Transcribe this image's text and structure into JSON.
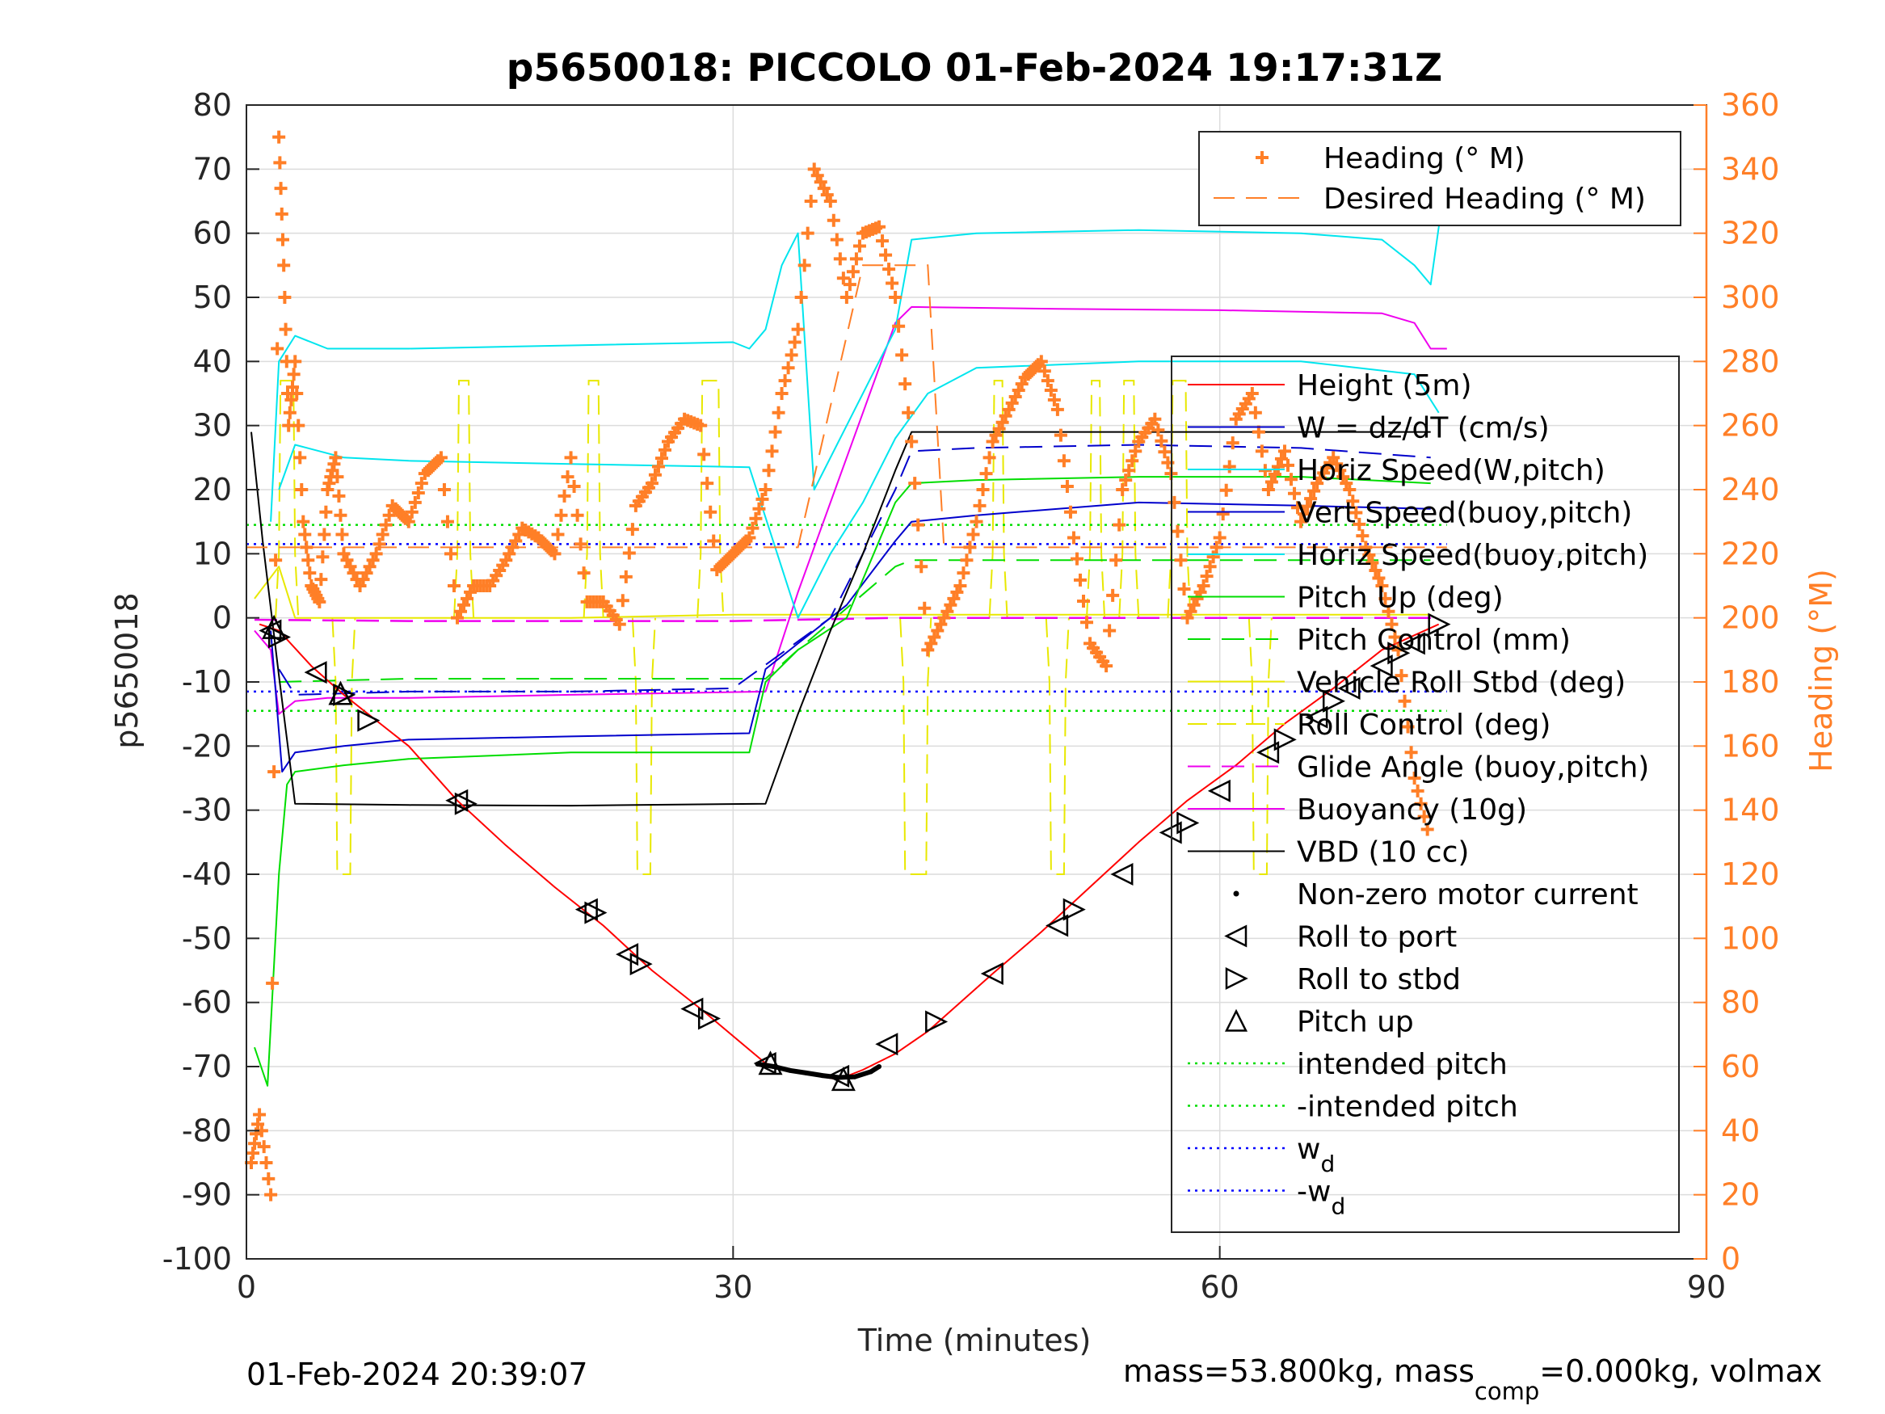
{
  "chart_data": {
    "type": "line",
    "title": "p5650018: PICCOLO 01-Feb-2024 19:17:31Z",
    "xlabel": "Time (minutes)",
    "ylabel_left": "p5650018",
    "ylabel_right": "Heading (°M)",
    "xlim": [
      0,
      90
    ],
    "ylim_left": [
      -100,
      80
    ],
    "ylim_right": [
      0,
      360
    ],
    "xticks": [
      0,
      30,
      60,
      90
    ],
    "yticks_left": [
      80,
      70,
      60,
      50,
      40,
      30,
      20,
      10,
      0,
      -10,
      -20,
      -30,
      -40,
      -50,
      -60,
      -70,
      -80,
      -90,
      -100
    ],
    "yticks_right": [
      360,
      340,
      320,
      300,
      280,
      260,
      240,
      220,
      200,
      180,
      160,
      140,
      120,
      100,
      80,
      60,
      40,
      20,
      0
    ],
    "grid": true,
    "colors": {
      "height": "#ff0000",
      "w": "#0000cc",
      "horiz_speed_w": "#00e5ee",
      "vert_speed_buoy": "#0000cc",
      "horiz_speed_buoy": "#00e5ee",
      "pitch": "#00dd00",
      "roll": "#e8e800",
      "glide": "#ee00ee",
      "vbd": "#000000",
      "heading": "#ff7f27",
      "intended": "#00dd00",
      "wd": "#0000ff",
      "right_axis": "#ff7f27"
    },
    "legend_top": {
      "position": "top-right",
      "entries": [
        "Heading (° M)",
        "Desired Heading (° M)"
      ]
    },
    "legend_main": {
      "position": "right",
      "entries": [
        "Height (5m)",
        "W = dz/dT (cm/s)",
        "Horiz Speed(W,pitch)",
        "Vert Speed(buoy,pitch)",
        "Horiz Speed(buoy,pitch)",
        "Pitch Up (deg)",
        "Pitch Control (mm)",
        "Vehicle Roll Stbd (deg)",
        "Roll Control (deg)",
        "Glide Angle (buoy,pitch)",
        "Buoyancy (10g)",
        "VBD (10 cc)",
        "Non-zero motor current",
        "Roll to port",
        "Roll to stbd",
        "Pitch up",
        "intended pitch",
        "-intended pitch",
        "w",
        "-w"
      ],
      "subscripts": {
        "18": "d",
        "19": "d"
      }
    },
    "series": [
      {
        "name": "Height (5m)",
        "x": [
          0.8,
          2,
          4,
          6,
          8,
          10,
          13,
          16,
          19,
          22,
          25,
          28,
          32,
          34,
          36.5,
          38,
          40,
          42,
          44,
          46,
          49,
          52,
          55,
          58,
          61,
          64,
          67,
          70,
          73.5
        ],
        "y": [
          -1,
          -2,
          -7.5,
          -12,
          -16,
          -20,
          -28.5,
          -35.5,
          -42,
          -48,
          -55,
          -61,
          -69.5,
          -71,
          -72,
          -70.5,
          -68,
          -64.5,
          -60,
          -55.5,
          -49,
          -42,
          -35,
          -28.5,
          -23,
          -16.5,
          -11,
          -5,
          -1
        ]
      },
      {
        "name": "VBD (10 cc)",
        "x": [
          0.3,
          1,
          2,
          3,
          10,
          20,
          32,
          34,
          36,
          38,
          40,
          41,
          50,
          60,
          70,
          73
        ],
        "y": [
          29,
          12,
          -9,
          -29,
          -29.2,
          -29.3,
          -29,
          -15,
          -2,
          10,
          23,
          29,
          29,
          29,
          29,
          29
        ]
      },
      {
        "name": "Buoyancy (10g)",
        "x": [
          0.5,
          1.5,
          2,
          3,
          5,
          10,
          20,
          32,
          34,
          36,
          38,
          40,
          41,
          50,
          60,
          70,
          72,
          73,
          74
        ],
        "y": [
          -2,
          -5,
          -15,
          -13,
          -12.5,
          -12.5,
          -12,
          -11.5,
          4,
          18,
          32,
          46,
          48.5,
          48.2,
          48,
          47.5,
          46,
          42,
          42
        ]
      },
      {
        "name": "Horiz Speed(buoy,pitch)",
        "x": [
          1.5,
          2,
          3,
          5,
          10,
          20,
          30,
          31,
          32,
          33,
          34,
          35,
          40,
          41,
          45,
          55,
          65,
          70,
          72,
          73,
          74
        ],
        "y": [
          15,
          40,
          44,
          42,
          42,
          42.5,
          43,
          42,
          45,
          55,
          60,
          20,
          45,
          59,
          60,
          60.5,
          60,
          59,
          55,
          52,
          70
        ]
      },
      {
        "name": "Horiz Speed(W,pitch)",
        "x": [
          2,
          3,
          6,
          10,
          20,
          31,
          34,
          36,
          38,
          40,
          42,
          45,
          55,
          65,
          72,
          73.5
        ],
        "y": [
          20,
          27,
          25,
          24.5,
          24,
          23.5,
          0,
          10,
          18,
          28,
          35,
          39,
          40,
          40,
          38,
          32
        ]
      },
      {
        "name": "Vert Speed(buoy,pitch)",
        "x": [
          1.5,
          2.2,
          3,
          6,
          10,
          20,
          31,
          32,
          34,
          37,
          40,
          41,
          45,
          55,
          65,
          73
        ],
        "y": [
          -2,
          -24,
          -21,
          -20,
          -19,
          -18.5,
          -18,
          -8,
          -4,
          2,
          12,
          15,
          16,
          18,
          17.5,
          17
        ]
      },
      {
        "name": "W = dz/dT (cm/s)",
        "x": [
          2,
          3,
          10,
          20,
          30,
          36,
          40,
          41,
          45,
          55,
          65,
          73
        ],
        "y": [
          -8,
          -12,
          -11.5,
          -11.5,
          -11,
          0,
          20,
          26,
          26.5,
          27,
          26.5,
          25
        ]
      },
      {
        "name": "Pitch Up (deg)",
        "x": [
          0.5,
          1.3,
          2,
          2.5,
          3,
          6,
          10,
          20,
          31,
          32,
          34,
          37,
          40,
          41,
          45,
          55,
          65,
          73
        ],
        "y": [
          -67,
          -73,
          -40,
          -26,
          -24,
          -23,
          -22,
          -21,
          -21,
          -10,
          -5,
          0,
          18,
          21,
          21.5,
          22,
          22,
          21
        ]
      },
      {
        "name": "Pitch Control (mm)",
        "x": [
          2,
          10,
          20,
          32,
          34,
          40,
          41,
          50,
          60,
          70,
          73
        ],
        "y": [
          -10,
          -9.5,
          -9.5,
          -9.5,
          -5,
          8,
          9,
          9,
          9,
          9,
          9
        ]
      },
      {
        "name": "Vehicle Roll Stbd (deg)",
        "x": [
          0.5,
          2,
          3,
          10,
          20,
          30,
          40,
          50,
          60,
          70,
          73
        ],
        "y": [
          3,
          8,
          0,
          0,
          0,
          0.5,
          0.5,
          0.5,
          0.5,
          0.5,
          0.5
        ]
      },
      {
        "name": "Glide Angle (buoy,pitch)",
        "x": [
          0.5,
          10,
          30,
          40,
          50,
          60,
          70,
          73.5
        ],
        "y": [
          -0.3,
          -0.5,
          -0.5,
          0,
          0,
          0,
          0,
          0
        ]
      },
      {
        "name": "intended pitch",
        "x": [
          0,
          74
        ],
        "y": [
          14.5,
          14.5
        ]
      },
      {
        "name": "-intended pitch",
        "x": [
          0,
          74
        ],
        "y": [
          -14.5,
          -14.5
        ]
      },
      {
        "name": "w_d",
        "x": [
          0,
          74
        ],
        "y": [
          11.5,
          11.5
        ]
      },
      {
        "name": "-w_d",
        "x": [
          0,
          74
        ],
        "y": [
          -11.5,
          -11.5
        ]
      }
    ],
    "roll_spikes": {
      "name": "Roll Control (deg)",
      "up": [
        [
          2,
          3
        ],
        [
          13,
          13.8
        ],
        [
          21,
          21.8
        ],
        [
          28,
          29.2
        ],
        [
          46,
          46.7
        ],
        [
          52,
          52.7
        ],
        [
          54,
          54.8
        ],
        [
          57,
          58
        ]
      ],
      "down": [
        [
          5.5,
          6.5
        ],
        [
          24,
          25
        ],
        [
          40.5,
          42
        ],
        [
          49.5,
          50.5
        ],
        [
          62,
          63
        ]
      ]
    },
    "heading": {
      "name": "Heading (° M)",
      "x": [
        0.3,
        0.8,
        1.5,
        2,
        2.3,
        2.6,
        3,
        3.5,
        4,
        4.5,
        5,
        5.5,
        6,
        7,
        8,
        9,
        10,
        11,
        12,
        13,
        14,
        15,
        16,
        17,
        18,
        19,
        20,
        21,
        22,
        23,
        24,
        25,
        26,
        27,
        28,
        29,
        30,
        31,
        32,
        33,
        34,
        35,
        36,
        37,
        38,
        39,
        40,
        41,
        42,
        43,
        44,
        45,
        46,
        47,
        48,
        49,
        50,
        51,
        52,
        53,
        54,
        55,
        56,
        57,
        58,
        59,
        60,
        61,
        62,
        63,
        64,
        65,
        66,
        67,
        68,
        69,
        70,
        71,
        72,
        73
      ],
      "y": [
        30,
        45,
        20,
        350,
        310,
        260,
        280,
        230,
        210,
        205,
        240,
        250,
        220,
        210,
        220,
        235,
        230,
        245,
        250,
        200,
        210,
        210,
        218,
        228,
        225,
        220,
        250,
        205,
        205,
        198,
        235,
        242,
        255,
        262,
        260,
        215,
        220,
        225,
        240,
        270,
        290,
        340,
        330,
        300,
        320,
        322,
        300,
        255,
        190,
        200,
        210,
        230,
        255,
        265,
        275,
        280,
        265,
        225,
        192,
        185,
        240,
        255,
        262,
        245,
        200,
        210,
        225,
        262,
        270,
        240,
        252,
        230,
        242,
        250,
        240,
        222,
        210,
        190,
        150,
        130
      ]
    },
    "desired_heading": {
      "name": "Desired Heading (° M)",
      "x": [
        0,
        34,
        38,
        42,
        43,
        74
      ],
      "y": [
        222,
        222,
        310,
        310,
        222,
        222
      ]
    },
    "markers": {
      "roll_to_port": [
        [
          1.5,
          -2
        ],
        [
          4.3,
          -8.5
        ],
        [
          13,
          -28.5
        ],
        [
          21,
          -45.5
        ],
        [
          23.5,
          -52.5
        ],
        [
          27.5,
          -61
        ],
        [
          32,
          -69.5
        ],
        [
          36.5,
          -71.5
        ],
        [
          39.5,
          -66.5
        ],
        [
          46,
          -55.5
        ],
        [
          50,
          -48
        ],
        [
          54,
          -40
        ],
        [
          57,
          -33.5
        ],
        [
          60,
          -27
        ],
        [
          63,
          -21
        ],
        [
          66,
          -15.5
        ],
        [
          68,
          -11
        ],
        [
          70,
          -7.5
        ],
        [
          72,
          -4
        ]
      ],
      "roll_to_stbd": [
        [
          2,
          -3
        ],
        [
          6,
          -12
        ],
        [
          7.5,
          -16
        ],
        [
          13.5,
          -29
        ],
        [
          21.5,
          -46
        ],
        [
          24.3,
          -54
        ],
        [
          28.5,
          -62.5
        ],
        [
          42.5,
          -63
        ],
        [
          51,
          -45.5
        ],
        [
          58,
          -32
        ],
        [
          64,
          -19
        ],
        [
          67,
          -13
        ],
        [
          71,
          -5.5
        ],
        [
          73.5,
          -1
        ]
      ],
      "pitch_up": [
        [
          1.7,
          -1.5
        ],
        [
          5.8,
          -11.8
        ],
        [
          32.3,
          -69.5
        ],
        [
          36.8,
          -72
        ]
      ],
      "motor_current": [
        [
          31.5,
          -69.6
        ],
        [
          32.5,
          -70
        ],
        [
          33.5,
          -70.6
        ],
        [
          34.5,
          -71
        ],
        [
          35.5,
          -71.4
        ],
        [
          36.5,
          -71.7
        ],
        [
          37.5,
          -71.6
        ],
        [
          38.5,
          -70.8
        ],
        [
          39,
          -70
        ]
      ]
    },
    "footer_left": "01-Feb-2024 20:39:07",
    "footer_right_pre": "mass=53.800kg, mass",
    "footer_right_sub": "comp",
    "footer_right_post": "=0.000kg, volmax"
  }
}
